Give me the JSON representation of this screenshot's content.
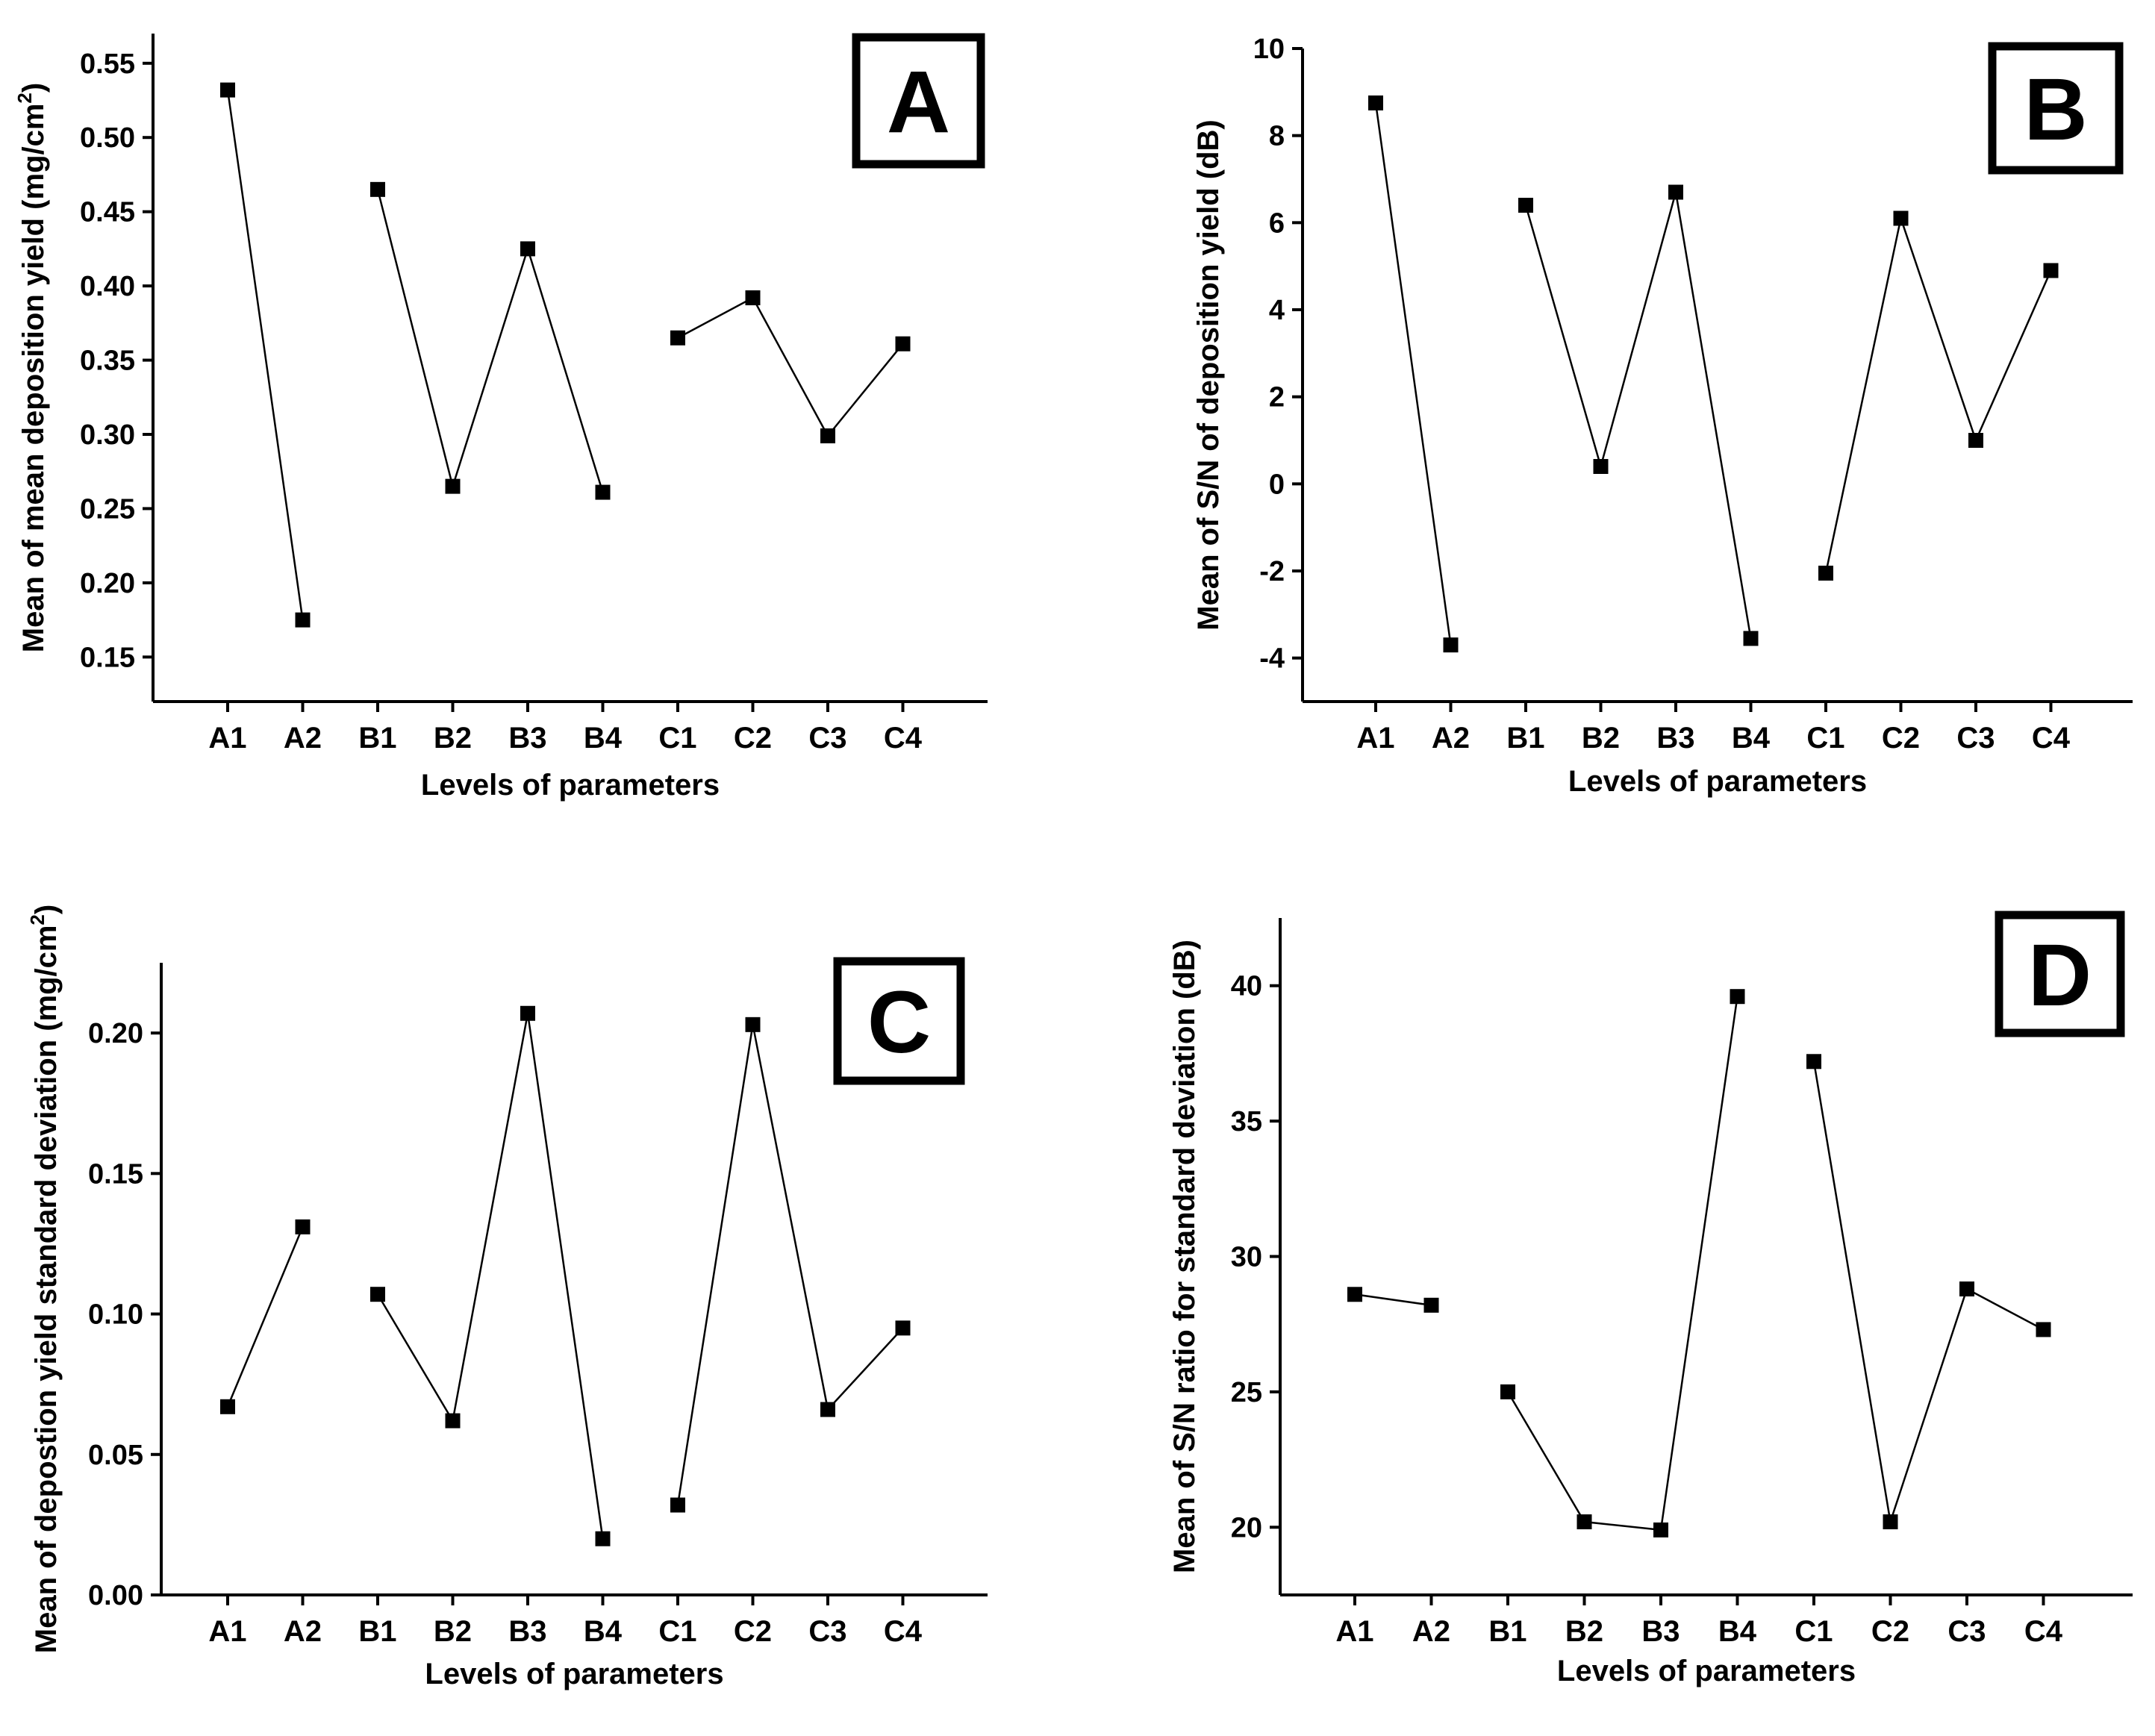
{
  "chart_data": [
    {
      "type": "line",
      "panel": "A",
      "categories": [
        "A1",
        "A2",
        "B1",
        "B2",
        "B3",
        "B4",
        "C1",
        "C2",
        "C3",
        "C4"
      ],
      "groups": [
        [
          "A1",
          "A2"
        ],
        [
          "B1",
          "B2",
          "B3",
          "B4"
        ],
        [
          "C1",
          "C2",
          "C3",
          "C4"
        ]
      ],
      "values": [
        0.532,
        0.175,
        0.465,
        0.265,
        0.425,
        0.261,
        0.365,
        0.392,
        0.299,
        0.361
      ],
      "xlabel": "Levels of parameters",
      "ylabel": "Mean of mean deposition yield (mg/cm",
      "ylabel_sup": "2",
      "ylabel_close": ")",
      "ylim": [
        0.12,
        0.57
      ],
      "yticks": [
        0.15,
        0.2,
        0.25,
        0.3,
        0.35,
        0.4,
        0.45,
        0.5,
        0.55
      ],
      "ytick_labels": [
        "0.15",
        "0.20",
        "0.25",
        "0.30",
        "0.35",
        "0.40",
        "0.45",
        "0.50",
        "0.55"
      ]
    },
    {
      "type": "line",
      "panel": "B",
      "categories": [
        "A1",
        "A2",
        "B1",
        "B2",
        "B3",
        "B4",
        "C1",
        "C2",
        "C3",
        "C4"
      ],
      "groups": [
        [
          "A1",
          "A2"
        ],
        [
          "B1",
          "B2",
          "B3",
          "B4"
        ],
        [
          "C1",
          "C2",
          "C3",
          "C4"
        ]
      ],
      "values": [
        8.75,
        -3.7,
        6.4,
        0.4,
        6.7,
        -3.55,
        -2.05,
        6.1,
        1.0,
        4.9
      ],
      "xlabel": "Levels of parameters",
      "ylabel": "Mean of S/N of deposition yield (dB)",
      "ylim": [
        -5,
        10
      ],
      "yticks": [
        -4,
        -2,
        0,
        2,
        4,
        6,
        8,
        10
      ],
      "ytick_labels": [
        "-4",
        "-2",
        "0",
        "2",
        "4",
        "6",
        "8",
        "10"
      ]
    },
    {
      "type": "line",
      "panel": "C",
      "categories": [
        "A1",
        "A2",
        "B1",
        "B2",
        "B3",
        "B4",
        "C1",
        "C2",
        "C3",
        "C4"
      ],
      "groups": [
        [
          "A1",
          "A2"
        ],
        [
          "B1",
          "B2",
          "B3",
          "B4"
        ],
        [
          "C1",
          "C2",
          "C3",
          "C4"
        ]
      ],
      "values": [
        0.067,
        0.131,
        0.107,
        0.062,
        0.207,
        0.02,
        0.032,
        0.203,
        0.066,
        0.095
      ],
      "xlabel": "Levels of parameters",
      "ylabel": "Mean of depostion yield standard deviation (mg/cm",
      "ylabel_sup": "2",
      "ylabel_close": ")",
      "ylim": [
        0,
        0.225
      ],
      "yticks": [
        0,
        0.05,
        0.1,
        0.15,
        0.2
      ],
      "ytick_labels": [
        "0.00",
        "0.05",
        "0.10",
        "0.15",
        "0.20"
      ]
    },
    {
      "type": "line",
      "panel": "D",
      "categories": [
        "A1",
        "A2",
        "B1",
        "B2",
        "B3",
        "B4",
        "C1",
        "C2",
        "C3",
        "C4"
      ],
      "groups": [
        [
          "A1",
          "A2"
        ],
        [
          "B1",
          "B2",
          "B3",
          "B4"
        ],
        [
          "C1",
          "C2",
          "C3",
          "C4"
        ]
      ],
      "values": [
        28.6,
        28.2,
        25.0,
        20.2,
        19.9,
        39.6,
        37.2,
        20.2,
        28.8,
        27.3
      ],
      "xlabel": "Levels of parameters",
      "ylabel": "Mean of S/N ratio for standard deviation (dB)",
      "ylim": [
        17.5,
        42.5
      ],
      "yticks": [
        20,
        25,
        30,
        35,
        40
      ],
      "ytick_labels": [
        "20",
        "25",
        "30",
        "35",
        "40"
      ]
    }
  ]
}
